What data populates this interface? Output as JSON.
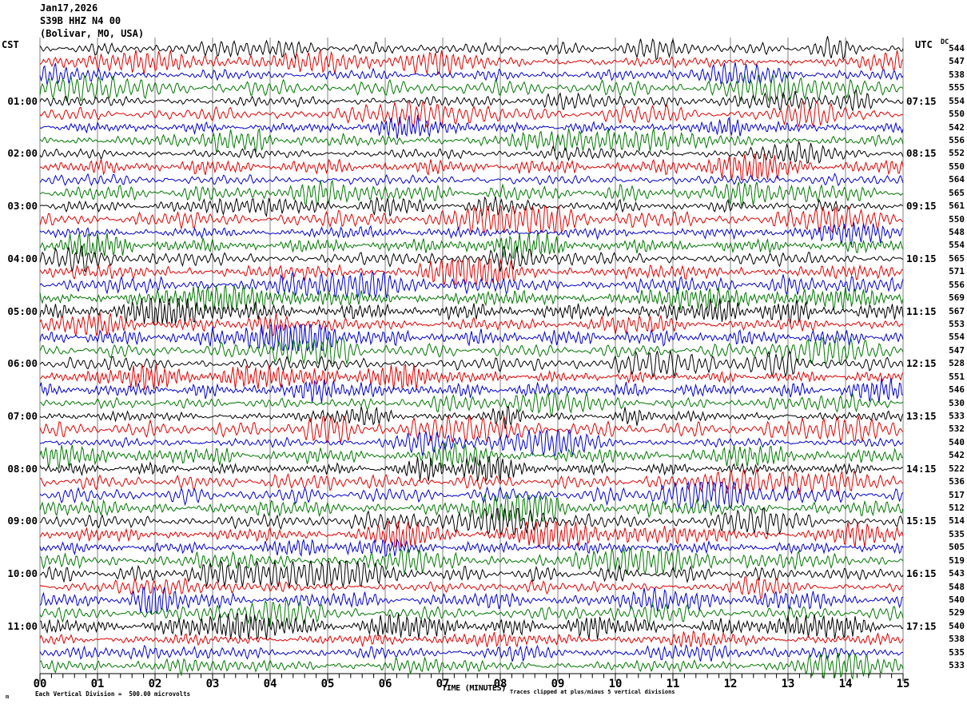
{
  "header": {
    "date": "Jan17,2026",
    "station": "S39B HHZ N4 00",
    "location": "(Bolivar, MO, USA)",
    "left_tz": "CST",
    "right_tz": "UTC",
    "dc_header": "DC"
  },
  "footer": {
    "corner_mark": "m",
    "scale_note": "Each Vertical Division =  500.00 microvolts",
    "axis_label": "TIME (MINUTES)",
    "clip_note": "Traces clipped at plus/minus 5 vertical divisions"
  },
  "trace_colors": {
    "black": "#000000",
    "red": "#dd0000",
    "blue": "#0000cc",
    "green": "#007700"
  },
  "grid_color": "#808080",
  "axis_color": "#000000",
  "chart_data": {
    "type": "line",
    "title": "S39B HHZ N4 00 (Bolivar, MO, USA) helicorder, Jan17,2026",
    "xlabel": "TIME (MINUTES)",
    "x_range": [
      0,
      15
    ],
    "x_ticks": [
      "00",
      "01",
      "02",
      "03",
      "04",
      "05",
      "06",
      "07",
      "08",
      "09",
      "10",
      "11",
      "12",
      "13",
      "14",
      "15"
    ],
    "minor_ticks_per_minute": 5,
    "trace_interval_minutes": 15,
    "traces_per_hour": 4,
    "vertical_division_microvolts": 500,
    "clip_divisions": 5,
    "waveform_note": "continuous band-limited seismic noise, amplitude ~1 vertical division with intermittent bursts",
    "rows": [
      {
        "color": "black",
        "cst": "",
        "utc": "",
        "dc": "544"
      },
      {
        "color": "red",
        "cst": "",
        "utc": "",
        "dc": "547"
      },
      {
        "color": "blue",
        "cst": "",
        "utc": "",
        "dc": "538"
      },
      {
        "color": "green",
        "cst": "",
        "utc": "",
        "dc": "555"
      },
      {
        "color": "black",
        "cst": "01:00",
        "utc": "07:15",
        "dc": "554"
      },
      {
        "color": "red",
        "cst": "",
        "utc": "",
        "dc": "550"
      },
      {
        "color": "blue",
        "cst": "",
        "utc": "",
        "dc": "542"
      },
      {
        "color": "green",
        "cst": "",
        "utc": "",
        "dc": "556"
      },
      {
        "color": "black",
        "cst": "02:00",
        "utc": "08:15",
        "dc": "552"
      },
      {
        "color": "red",
        "cst": "",
        "utc": "",
        "dc": "550"
      },
      {
        "color": "blue",
        "cst": "",
        "utc": "",
        "dc": "564"
      },
      {
        "color": "green",
        "cst": "",
        "utc": "",
        "dc": "565"
      },
      {
        "color": "black",
        "cst": "03:00",
        "utc": "09:15",
        "dc": "561"
      },
      {
        "color": "red",
        "cst": "",
        "utc": "",
        "dc": "550"
      },
      {
        "color": "blue",
        "cst": "",
        "utc": "",
        "dc": "548"
      },
      {
        "color": "green",
        "cst": "",
        "utc": "",
        "dc": "554"
      },
      {
        "color": "black",
        "cst": "04:00",
        "utc": "10:15",
        "dc": "565"
      },
      {
        "color": "red",
        "cst": "",
        "utc": "",
        "dc": "571"
      },
      {
        "color": "blue",
        "cst": "",
        "utc": "",
        "dc": "556"
      },
      {
        "color": "green",
        "cst": "",
        "utc": "",
        "dc": "569"
      },
      {
        "color": "black",
        "cst": "05:00",
        "utc": "11:15",
        "dc": "567"
      },
      {
        "color": "red",
        "cst": "",
        "utc": "",
        "dc": "553"
      },
      {
        "color": "blue",
        "cst": "",
        "utc": "",
        "dc": "554"
      },
      {
        "color": "green",
        "cst": "",
        "utc": "",
        "dc": "547"
      },
      {
        "color": "black",
        "cst": "06:00",
        "utc": "12:15",
        "dc": "528"
      },
      {
        "color": "red",
        "cst": "",
        "utc": "",
        "dc": "551"
      },
      {
        "color": "blue",
        "cst": "",
        "utc": "",
        "dc": "546"
      },
      {
        "color": "green",
        "cst": "",
        "utc": "",
        "dc": "530"
      },
      {
        "color": "black",
        "cst": "07:00",
        "utc": "13:15",
        "dc": "533"
      },
      {
        "color": "red",
        "cst": "",
        "utc": "",
        "dc": "532"
      },
      {
        "color": "blue",
        "cst": "",
        "utc": "",
        "dc": "540"
      },
      {
        "color": "green",
        "cst": "",
        "utc": "",
        "dc": "542"
      },
      {
        "color": "black",
        "cst": "08:00",
        "utc": "14:15",
        "dc": "522"
      },
      {
        "color": "red",
        "cst": "",
        "utc": "",
        "dc": "536"
      },
      {
        "color": "blue",
        "cst": "",
        "utc": "",
        "dc": "517"
      },
      {
        "color": "green",
        "cst": "",
        "utc": "",
        "dc": "512"
      },
      {
        "color": "black",
        "cst": "09:00",
        "utc": "15:15",
        "dc": "514"
      },
      {
        "color": "red",
        "cst": "",
        "utc": "",
        "dc": "535"
      },
      {
        "color": "blue",
        "cst": "",
        "utc": "",
        "dc": "505"
      },
      {
        "color": "green",
        "cst": "",
        "utc": "",
        "dc": "519"
      },
      {
        "color": "black",
        "cst": "10:00",
        "utc": "16:15",
        "dc": "543"
      },
      {
        "color": "red",
        "cst": "",
        "utc": "",
        "dc": "548"
      },
      {
        "color": "blue",
        "cst": "",
        "utc": "",
        "dc": "540"
      },
      {
        "color": "green",
        "cst": "",
        "utc": "",
        "dc": "529"
      },
      {
        "color": "black",
        "cst": "11:00",
        "utc": "17:15",
        "dc": "540"
      },
      {
        "color": "red",
        "cst": "",
        "utc": "",
        "dc": "538"
      },
      {
        "color": "blue",
        "cst": "",
        "utc": "",
        "dc": "535"
      },
      {
        "color": "green",
        "cst": "",
        "utc": "",
        "dc": "533"
      }
    ]
  }
}
